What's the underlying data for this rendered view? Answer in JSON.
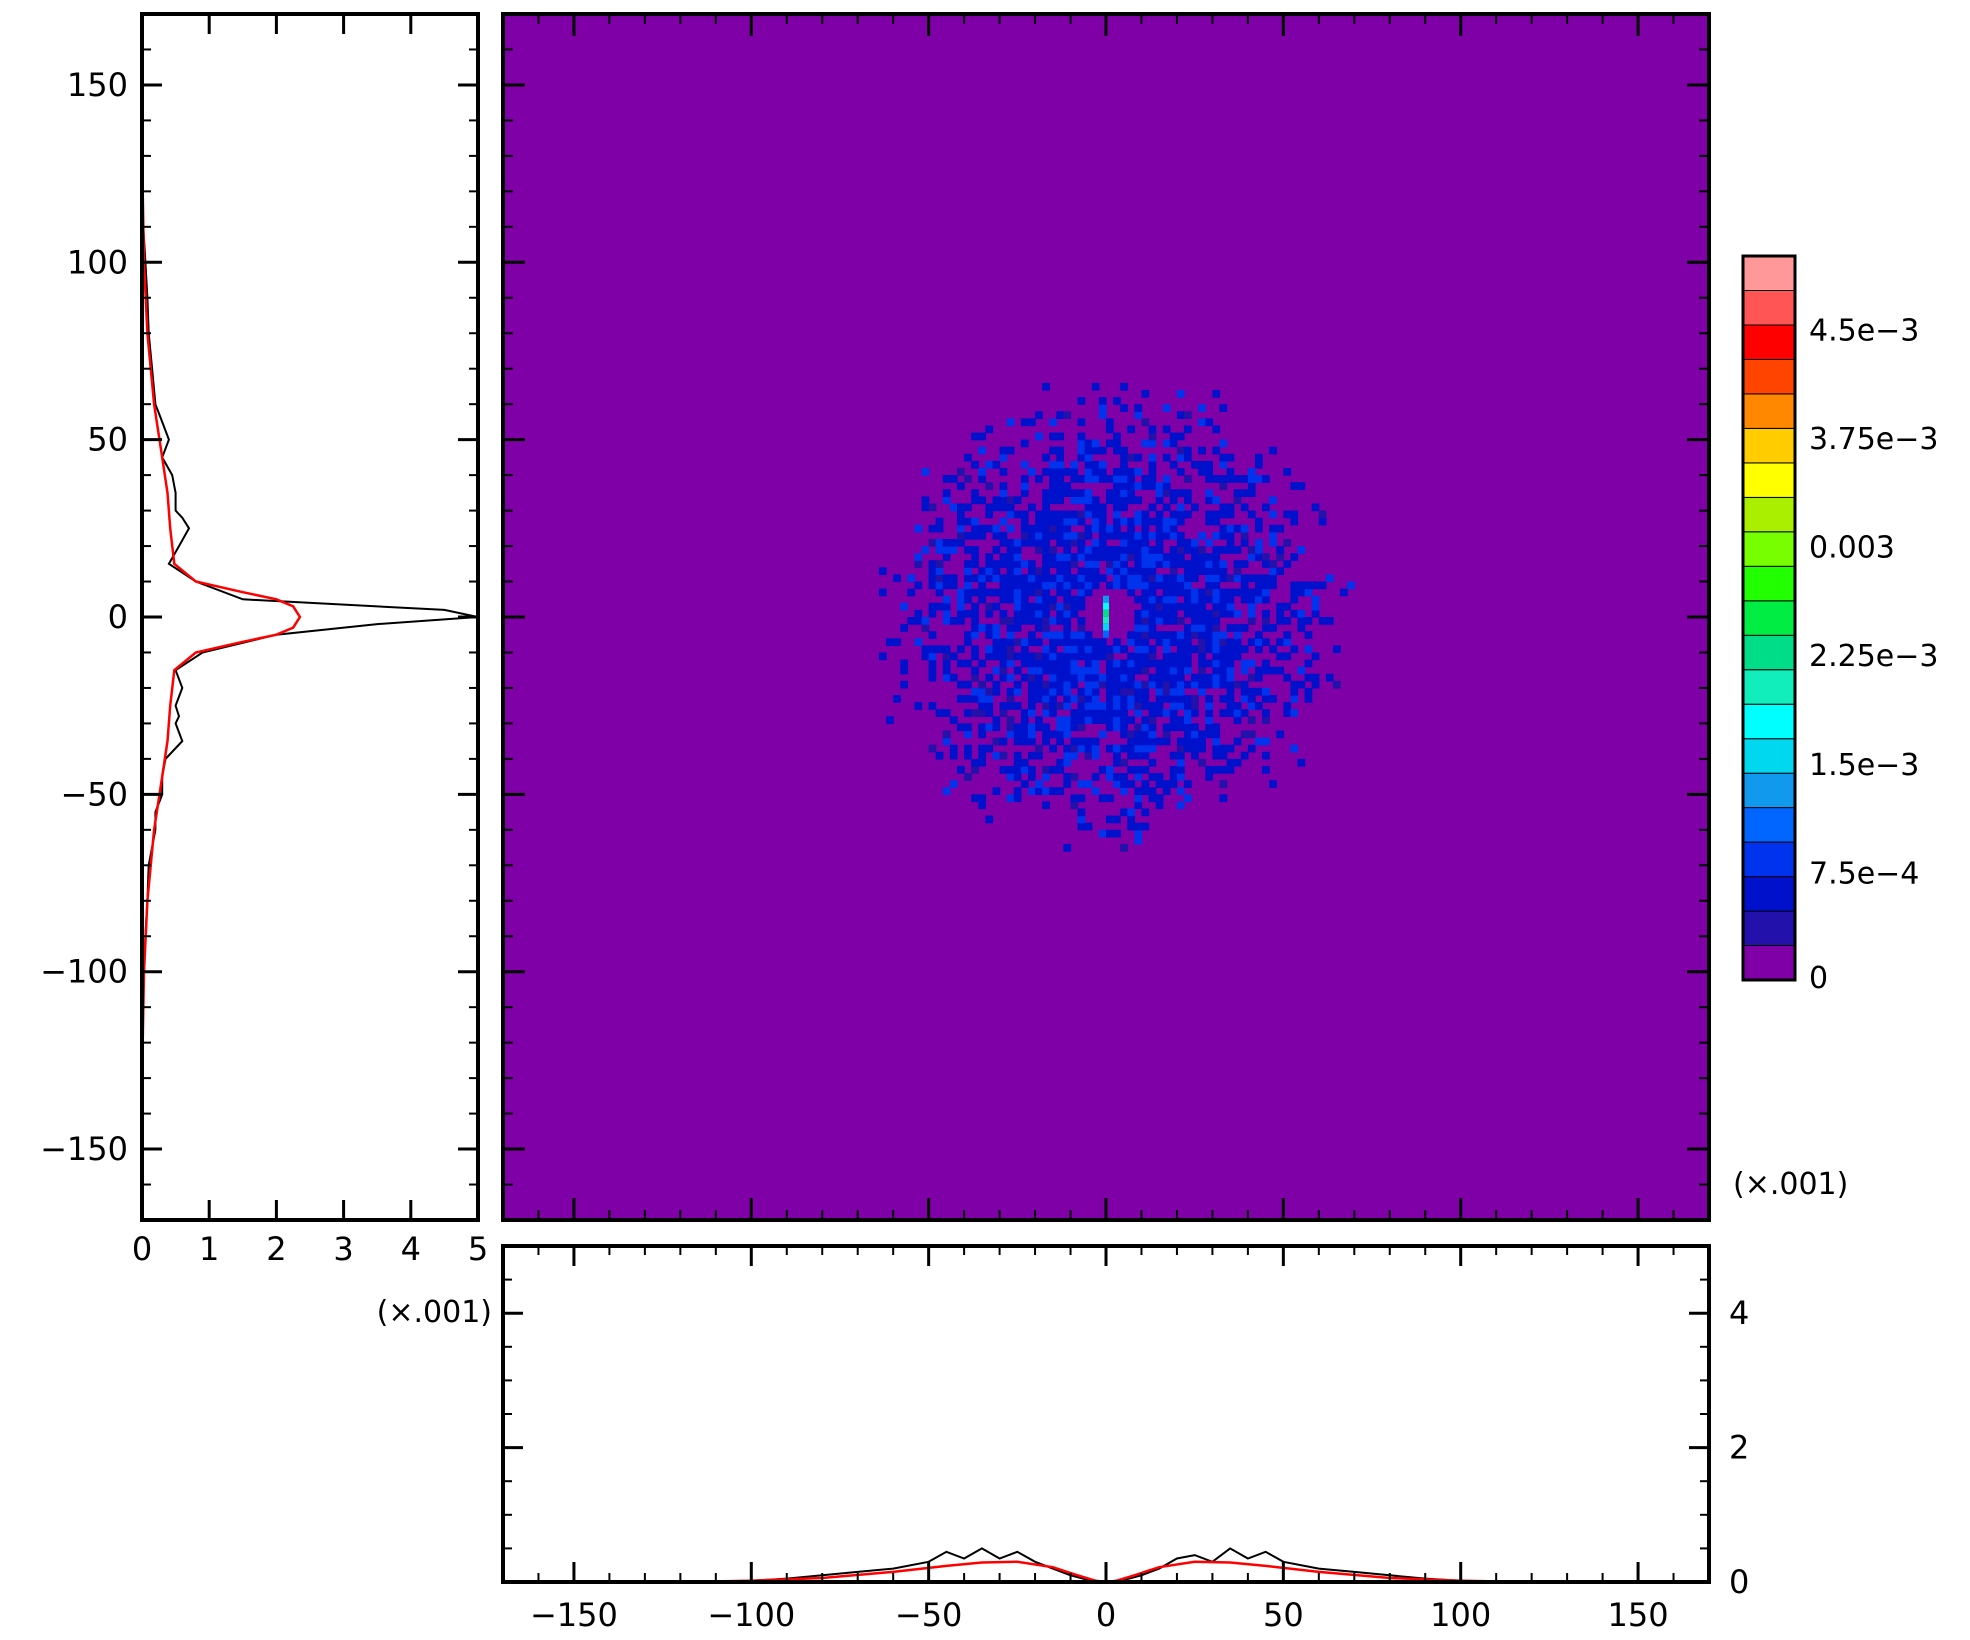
{
  "chart_data": [
    {
      "panel": "heatmap-main",
      "type": "heatmap",
      "xlim": [
        -170,
        170
      ],
      "ylim": [
        -170,
        170
      ],
      "x_ticks": [
        -150,
        -100,
        -50,
        0,
        50,
        100,
        150
      ],
      "y_ticks": [
        -150,
        -100,
        -50,
        0,
        50,
        100,
        150
      ],
      "background_value": 0,
      "feature": "diffuse annular scatter centered at (0, 0), radius about 70, faint blue; small empty hole near the center with a bright cyan/green vertical streak at x = 0",
      "structure": {
        "center": [
          0,
          0
        ],
        "ring_peak_radius": 25,
        "outer_edge_radius": 70,
        "hole_radius": 8,
        "peak_level": 0.0021,
        "ring_level": 0.0004
      },
      "colorbar": {
        "scale_label": "(×.001)",
        "tick_labels": [
          "0",
          "7.5e−4",
          "1.5e−3",
          "2.25e−3",
          "0.003",
          "3.75e−3",
          "4.5e−3"
        ],
        "tick_values": [
          0,
          0.00075,
          0.0015,
          0.00225,
          0.003,
          0.00375,
          0.0045
        ],
        "levels": [
          0,
          0.00025,
          0.0005,
          0.00075,
          0.001,
          0.00125,
          0.0015,
          0.00175,
          0.002,
          0.00225,
          0.0025,
          0.00275,
          0.003,
          0.00325,
          0.0035,
          0.00375,
          0.004,
          0.00425,
          0.0045,
          0.00475
        ],
        "colors": [
          "#7f00a6",
          "#2211aa",
          "#0011cc",
          "#0033ee",
          "#0066ff",
          "#1199ee",
          "#00d8f0",
          "#00ffff",
          "#11eebb",
          "#00dd88",
          "#00ee44",
          "#22ff00",
          "#77ff00",
          "#aaee00",
          "#ffff00",
          "#ffcc00",
          "#ff8800",
          "#ff4400",
          "#ff0000",
          "#ff5555",
          "#ff9999"
        ]
      }
    },
    {
      "panel": "left-profile",
      "type": "line",
      "orientation": "vertical",
      "xlim": [
        0,
        5
      ],
      "ylim": [
        -170,
        170
      ],
      "x_ticks": [
        0,
        1,
        2,
        3,
        4,
        5
      ],
      "x_scale_label": "(×.001)",
      "y_ticks": [
        -150,
        -100,
        -50,
        0,
        50,
        100,
        150
      ],
      "series": [
        {
          "color": "#000000",
          "style": "noisy histogram",
          "y": [
            165,
            150,
            125,
            110,
            100,
            90,
            80,
            70,
            60,
            55,
            50,
            45,
            40,
            35,
            30,
            28,
            25,
            20,
            15,
            10,
            5,
            2,
            0,
            -2,
            -5,
            -10,
            -15,
            -20,
            -25,
            -28,
            -30,
            -35,
            -40,
            -45,
            -50,
            -55,
            -60,
            -70,
            -80,
            -90,
            -100,
            -110,
            -125,
            -150,
            -165
          ],
          "x": [
            0.0,
            0.0,
            0.0,
            0.02,
            0.05,
            0.08,
            0.1,
            0.15,
            0.2,
            0.3,
            0.4,
            0.3,
            0.45,
            0.5,
            0.5,
            0.6,
            0.7,
            0.55,
            0.4,
            0.8,
            1.5,
            4.5,
            5.0,
            3.5,
            2.0,
            0.9,
            0.5,
            0.6,
            0.5,
            0.55,
            0.5,
            0.6,
            0.35,
            0.3,
            0.3,
            0.2,
            0.2,
            0.1,
            0.08,
            0.05,
            0.03,
            0.01,
            0.0,
            0.0,
            0.0
          ]
        },
        {
          "color": "#ff0000",
          "style": "smooth fit",
          "y": [
            165,
            140,
            120,
            100,
            80,
            60,
            45,
            35,
            25,
            15,
            10,
            7,
            5,
            3,
            0,
            -3,
            -5,
            -7,
            -10,
            -15,
            -25,
            -35,
            -45,
            -60,
            -80,
            -100,
            -120,
            -140,
            -165
          ],
          "x": [
            0.0,
            0.0,
            0.01,
            0.03,
            0.08,
            0.18,
            0.3,
            0.38,
            0.42,
            0.48,
            0.8,
            1.5,
            2.0,
            2.25,
            2.35,
            2.25,
            2.0,
            1.5,
            0.8,
            0.48,
            0.42,
            0.38,
            0.3,
            0.18,
            0.08,
            0.03,
            0.01,
            0.0,
            0.0
          ]
        }
      ]
    },
    {
      "panel": "bottom-profile",
      "type": "line",
      "xlim": [
        -170,
        170
      ],
      "ylim": [
        0,
        5
      ],
      "x_ticks": [
        -150,
        -100,
        -50,
        0,
        50,
        100,
        150
      ],
      "y_ticks": [
        0,
        2,
        4
      ],
      "series": [
        {
          "color": "#000000",
          "style": "noisy histogram",
          "x": [
            -170,
            -120,
            -100,
            -90,
            -80,
            -70,
            -60,
            -50,
            -45,
            -40,
            -35,
            -30,
            -25,
            -20,
            -15,
            -10,
            -5,
            0,
            5,
            10,
            15,
            20,
            25,
            30,
            35,
            40,
            45,
            50,
            60,
            70,
            80,
            90,
            100,
            120,
            170
          ],
          "y": [
            0.0,
            0.0,
            0.02,
            0.05,
            0.1,
            0.15,
            0.2,
            0.3,
            0.45,
            0.35,
            0.5,
            0.35,
            0.45,
            0.3,
            0.2,
            0.1,
            0.03,
            0.0,
            0.03,
            0.1,
            0.2,
            0.35,
            0.4,
            0.3,
            0.5,
            0.35,
            0.45,
            0.3,
            0.2,
            0.15,
            0.1,
            0.05,
            0.02,
            0.0,
            0.0
          ]
        },
        {
          "color": "#ff0000",
          "style": "smooth fit",
          "x": [
            -170,
            -120,
            -100,
            -80,
            -60,
            -45,
            -35,
            -25,
            -15,
            -8,
            -3,
            0,
            3,
            8,
            15,
            25,
            35,
            45,
            60,
            80,
            100,
            120,
            170
          ],
          "y": [
            0.0,
            0.0,
            0.02,
            0.06,
            0.15,
            0.24,
            0.29,
            0.3,
            0.22,
            0.1,
            0.02,
            0.0,
            0.02,
            0.1,
            0.22,
            0.3,
            0.29,
            0.24,
            0.15,
            0.06,
            0.02,
            0.0,
            0.0
          ]
        }
      ]
    }
  ]
}
